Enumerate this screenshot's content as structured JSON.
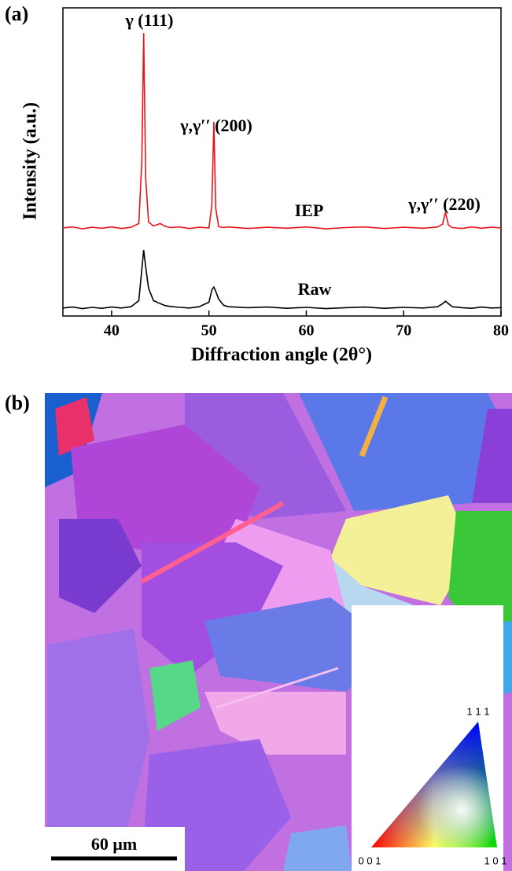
{
  "chart_data": {
    "type": "line",
    "panel_label": "(a)",
    "xlabel": "Diffraction angle (2θ°)",
    "ylabel": "Intensity (a.u.)",
    "xlim": [
      35,
      80
    ],
    "xticks": [
      40,
      50,
      60,
      70,
      80
    ],
    "ylim": [
      0,
      100
    ],
    "annotations": [
      "γ (111)",
      "γ,γ′′ (200)",
      "γ,γ′′ (220)"
    ],
    "series": [
      {
        "name": "IEP",
        "color": "#e8141b",
        "x": [
          35,
          36,
          37,
          38,
          39,
          40,
          41,
          42,
          42.8,
          43.1,
          43.3,
          43.5,
          43.8,
          44.3,
          45,
          45.5,
          46,
          47,
          48,
          49,
          50,
          50.3,
          50.5,
          50.7,
          51,
          51.5,
          52,
          54,
          56,
          58,
          60,
          62,
          64,
          66,
          68,
          70,
          72,
          73.5,
          74,
          74.3,
          74.6,
          75,
          76,
          77,
          78,
          79,
          80
        ],
        "values": [
          28.6,
          28.9,
          28.3,
          28.8,
          28.5,
          28.9,
          28.4,
          28.8,
          30,
          50,
          91.8,
          45,
          30.5,
          29.2,
          30,
          29.1,
          28.7,
          28.9,
          28.4,
          28.8,
          28.6,
          36,
          63,
          35,
          29,
          28.7,
          28.9,
          28.4,
          28.8,
          28.5,
          28.9,
          28.3,
          28.7,
          28.9,
          28.4,
          28.8,
          28.5,
          28.9,
          29.8,
          33.7,
          29.5,
          28.7,
          28.4,
          28.9,
          28.5,
          28.8,
          28.6
        ]
      },
      {
        "name": "Raw",
        "color": "#000000",
        "x": [
          35,
          36,
          37,
          38,
          39,
          40,
          41,
          42,
          42.8,
          43.1,
          43.3,
          43.5,
          43.8,
          44.3,
          45,
          45.5,
          46,
          47,
          48,
          49,
          50,
          50.3,
          50.5,
          50.7,
          51,
          51.5,
          52,
          54,
          56,
          58,
          60,
          62,
          64,
          66,
          68,
          70,
          72,
          73.5,
          74,
          74.3,
          74.6,
          75,
          76,
          77,
          78,
          79,
          80
        ],
        "values": [
          2.6,
          2.9,
          2.4,
          2.8,
          2.5,
          2.9,
          2.6,
          3,
          5,
          15,
          21.4,
          16,
          9,
          5,
          4,
          3.4,
          3.1,
          2.8,
          2.6,
          3,
          4.5,
          8.5,
          9.4,
          8,
          5.5,
          3.5,
          3,
          2.7,
          2.9,
          2.5,
          2.8,
          2.4,
          2.7,
          2.9,
          2.5,
          2.8,
          2.6,
          3,
          4,
          4.8,
          4,
          3,
          2.7,
          2.5,
          2.9,
          2.6,
          2.7
        ]
      }
    ]
  },
  "map": {
    "panel_label": "(b)",
    "scale_bar": "60 μm",
    "legend_labels": [
      "1 1 1",
      "0 0 1",
      "1 0 1"
    ]
  }
}
